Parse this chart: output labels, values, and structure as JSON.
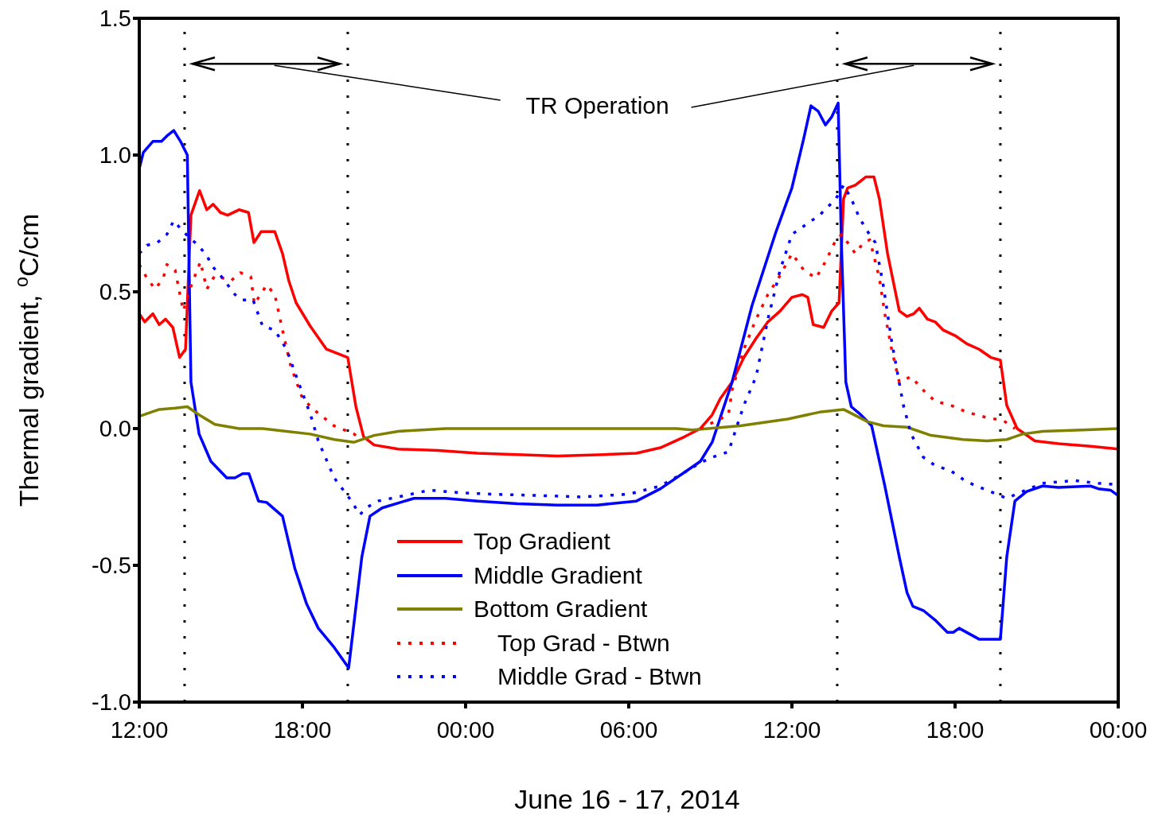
{
  "chart_data": {
    "type": "line",
    "xlabel": "June 16 - 17, 2014",
    "ylabel": "Thermal gradient, $^{o}$C/cm",
    "xlim": [
      "2014-06-16T12:00",
      "2014-06-18T00:00"
    ],
    "xticks": [
      {
        "value": "2014-06-16T12:00",
        "label": "12:00"
      },
      {
        "value": "2014-06-16T18:00",
        "label": "18:00"
      },
      {
        "value": "2014-06-17T00:00",
        "label": "00:00"
      },
      {
        "value": "2014-06-17T06:00",
        "label": "06:00"
      },
      {
        "value": "2014-06-17T12:00",
        "label": "12:00"
      },
      {
        "value": "2014-06-17T18:00",
        "label": "18:00"
      },
      {
        "value": "2014-06-18T00:00",
        "label": "00:00"
      }
    ],
    "ylim": [
      -1.0,
      1.5
    ],
    "yticks": [
      {
        "value": -1.0,
        "label": "-1.0"
      },
      {
        "value": -0.5,
        "label": "-0.5"
      },
      {
        "value": 0.0,
        "label": "0.0"
      },
      {
        "value": 0.5,
        "label": "0.5"
      },
      {
        "value": 1.0,
        "label": "1.0"
      },
      {
        "value": 1.5,
        "label": "1.5"
      }
    ],
    "legend": "bottom",
    "marker": "none",
    "annotations": [
      "TR Operation"
    ],
    "ref_lines": [
      {
        "axis": "x",
        "value": "2014-06-16T13:40",
        "color": "#000000",
        "line_style": "dotted"
      },
      {
        "axis": "x",
        "value": "2014-06-16T19:40",
        "color": "#000000",
        "line_style": "dotted"
      },
      {
        "axis": "x",
        "value": "2014-06-17T13:40",
        "color": "#000000",
        "line_style": "dotted"
      },
      {
        "axis": "x",
        "value": "2014-06-17T19:40",
        "color": "#000000",
        "line_style": "dotted"
      }
    ],
    "series": [
      {
        "name": "Top Gradient",
        "color": "#ff0000",
        "line_style": "solid",
        "x": [
          "2014-06-16T12:00",
          "2014-06-16T12:12",
          "2014-06-16T12:30",
          "2014-06-16T12:44",
          "2014-06-16T12:58",
          "2014-06-16T13:14",
          "2014-06-16T13:29",
          "2014-06-16T13:42",
          "2014-06-16T13:54",
          "2014-06-16T14:13",
          "2014-06-16T14:29",
          "2014-06-16T14:43",
          "2014-06-16T14:59",
          "2014-06-16T15:15",
          "2014-06-16T15:40",
          "2014-06-16T16:01",
          "2014-06-16T16:13",
          "2014-06-16T16:29",
          "2014-06-16T16:59",
          "2014-06-16T17:16",
          "2014-06-16T17:30",
          "2014-06-16T17:46",
          "2014-06-16T18:17",
          "2014-06-16T18:53",
          "2014-06-16T19:40",
          "2014-06-16T19:58",
          "2014-06-16T20:15",
          "2014-06-16T20:38",
          "2014-06-16T21:31",
          "2014-06-16T22:59",
          "2014-06-17T00:26",
          "2014-06-17T03:22",
          "2014-06-17T05:07",
          "2014-06-17T06:17",
          "2014-06-17T07:10",
          "2014-06-17T08:03",
          "2014-06-17T08:38",
          "2014-06-17T09:04",
          "2014-06-17T09:22",
          "2014-06-17T09:48",
          "2014-06-17T10:14",
          "2014-06-17T10:41",
          "2014-06-17T11:07",
          "2014-06-17T11:34",
          "2014-06-17T12:00",
          "2014-06-17T12:23",
          "2014-06-17T12:35",
          "2014-06-17T12:47",
          "2014-06-17T13:10",
          "2014-06-17T13:28",
          "2014-06-17T13:44",
          "2014-06-17T13:54",
          "2014-06-17T14:03",
          "2014-06-17T14:20",
          "2014-06-17T14:43",
          "2014-06-17T15:01",
          "2014-06-17T15:13",
          "2014-06-17T15:31",
          "2014-06-17T15:57",
          "2014-06-17T16:14",
          "2014-06-17T16:29",
          "2014-06-17T16:41",
          "2014-06-17T16:59",
          "2014-06-17T17:16",
          "2014-06-17T17:34",
          "2014-06-17T18:00",
          "2014-06-17T18:26",
          "2014-06-17T18:53",
          "2014-06-17T19:19",
          "2014-06-17T19:40",
          "2014-06-17T19:54",
          "2014-06-17T20:17",
          "2014-06-17T20:56",
          "2014-06-17T21:48",
          "2014-06-17T22:59",
          "2014-06-18T00:00"
        ],
        "values": [
          0.42,
          0.39,
          0.42,
          0.38,
          0.4,
          0.37,
          0.26,
          0.29,
          0.78,
          0.87,
          0.8,
          0.82,
          0.79,
          0.78,
          0.8,
          0.79,
          0.68,
          0.72,
          0.72,
          0.64,
          0.54,
          0.46,
          0.375,
          0.29,
          0.26,
          0.08,
          -0.03,
          -0.06,
          -0.075,
          -0.08,
          -0.09,
          -0.1,
          -0.095,
          -0.09,
          -0.07,
          -0.03,
          0.0,
          0.05,
          0.11,
          0.17,
          0.26,
          0.33,
          0.39,
          0.43,
          0.48,
          0.49,
          0.48,
          0.38,
          0.37,
          0.43,
          0.46,
          0.84,
          0.88,
          0.89,
          0.92,
          0.92,
          0.84,
          0.64,
          0.43,
          0.41,
          0.42,
          0.44,
          0.4,
          0.39,
          0.36,
          0.34,
          0.31,
          0.29,
          0.26,
          0.25,
          0.085,
          0.0,
          -0.045,
          -0.055,
          -0.065,
          -0.075
        ]
      },
      {
        "name": "Middle Gradient",
        "color": "#0000ff",
        "line_style": "solid",
        "x": [
          "2014-06-16T12:00",
          "2014-06-16T12:09",
          "2014-06-16T12:30",
          "2014-06-16T12:49",
          "2014-06-16T13:01",
          "2014-06-16T13:16",
          "2014-06-16T13:31",
          "2014-06-16T13:46",
          "2014-06-16T13:54",
          "2014-06-16T14:12",
          "2014-06-16T14:38",
          "2014-06-16T15:13",
          "2014-06-16T15:31",
          "2014-06-16T15:48",
          "2014-06-16T16:02",
          "2014-06-16T16:23",
          "2014-06-16T16:41",
          "2014-06-16T17:16",
          "2014-06-16T17:43",
          "2014-06-16T18:09",
          "2014-06-16T18:35",
          "2014-06-16T19:10",
          "2014-06-16T19:42",
          "2014-06-16T20:11",
          "2014-06-16T20:29",
          "2014-06-16T20:56",
          "2014-06-16T22:06",
          "2014-06-16T23:16",
          "2014-06-17T00:26",
          "2014-06-17T01:54",
          "2014-06-17T03:22",
          "2014-06-17T04:50",
          "2014-06-17T06:17",
          "2014-06-17T07:10",
          "2014-06-17T08:03",
          "2014-06-17T08:38",
          "2014-06-17T09:04",
          "2014-06-17T09:22",
          "2014-06-17T09:48",
          "2014-06-17T10:32",
          "2014-06-17T11:25",
          "2014-06-17T12:00",
          "2014-06-17T12:26",
          "2014-06-17T12:42",
          "2014-06-17T12:58",
          "2014-06-17T13:14",
          "2014-06-17T13:28",
          "2014-06-17T13:42",
          "2014-06-17T13:49",
          "2014-06-17T13:59",
          "2014-06-17T14:11",
          "2014-06-17T14:29",
          "2014-06-17T14:56",
          "2014-06-17T15:25",
          "2014-06-17T15:57",
          "2014-06-17T16:14",
          "2014-06-17T16:27",
          "2014-06-17T16:50",
          "2014-06-17T17:16",
          "2014-06-17T17:43",
          "2014-06-17T17:56",
          "2014-06-17T18:09",
          "2014-06-17T18:53",
          "2014-06-17T19:40",
          "2014-06-17T19:54",
          "2014-06-17T20:12",
          "2014-06-17T20:38",
          "2014-06-17T21:13",
          "2014-06-17T21:48",
          "2014-06-17T22:59",
          "2014-06-17T23:16",
          "2014-06-17T23:43",
          "2014-06-18T00:00"
        ],
        "values": [
          0.95,
          1.01,
          1.05,
          1.05,
          1.07,
          1.09,
          1.05,
          1.0,
          0.17,
          -0.02,
          -0.12,
          -0.18,
          -0.18,
          -0.165,
          -0.165,
          -0.265,
          -0.27,
          -0.32,
          -0.51,
          -0.64,
          -0.73,
          -0.8,
          -0.875,
          -0.47,
          -0.32,
          -0.29,
          -0.255,
          -0.255,
          -0.265,
          -0.275,
          -0.28,
          -0.28,
          -0.265,
          -0.22,
          -0.16,
          -0.12,
          -0.05,
          0.04,
          0.17,
          0.45,
          0.72,
          0.88,
          1.06,
          1.18,
          1.16,
          1.11,
          1.14,
          1.19,
          0.69,
          0.17,
          0.08,
          0.055,
          0.01,
          -0.21,
          -0.47,
          -0.6,
          -0.65,
          -0.665,
          -0.7,
          -0.745,
          -0.745,
          -0.73,
          -0.77,
          -0.77,
          -0.47,
          -0.265,
          -0.23,
          -0.21,
          -0.215,
          -0.21,
          -0.22,
          -0.225,
          -0.245
        ]
      },
      {
        "name": "Bottom Gradient",
        "color": "#808000",
        "line_style": "solid",
        "x": [
          "2014-06-16T12:00",
          "2014-06-16T12:44",
          "2014-06-16T13:19",
          "2014-06-16T13:46",
          "2014-06-16T14:12",
          "2014-06-16T14:47",
          "2014-06-16T15:40",
          "2014-06-16T16:32",
          "2014-06-16T17:25",
          "2014-06-16T18:17",
          "2014-06-16T19:10",
          "2014-06-16T19:54",
          "2014-06-16T20:38",
          "2014-06-16T21:31",
          "2014-06-16T23:16",
          "2014-06-17T03:22",
          "2014-06-17T07:46",
          "2014-06-17T08:20",
          "2014-06-17T10:06",
          "2014-06-17T11:51",
          "2014-06-17T13:01",
          "2014-06-17T13:54",
          "2014-06-17T14:47",
          "2014-06-17T15:22",
          "2014-06-17T16:14",
          "2014-06-17T17:07",
          "2014-06-17T18:17",
          "2014-06-17T19:10",
          "2014-06-17T19:54",
          "2014-06-17T20:29",
          "2014-06-17T21:13",
          "2014-06-17T22:41",
          "2014-06-18T00:00"
        ],
        "values": [
          0.045,
          0.07,
          0.075,
          0.08,
          0.05,
          0.015,
          0.0,
          0.0,
          -0.01,
          -0.02,
          -0.04,
          -0.05,
          -0.025,
          -0.01,
          0.0,
          0.0,
          0.0,
          -0.005,
          0.01,
          0.035,
          0.06,
          0.07,
          0.025,
          0.01,
          0.005,
          -0.025,
          -0.04,
          -0.045,
          -0.04,
          -0.02,
          -0.01,
          -0.005,
          0.0
        ]
      },
      {
        "name": "Top Grad - Btwn",
        "color": "#ff0000",
        "line_style": "dotted",
        "x": [
          "2014-06-16T12:00",
          "2014-06-16T12:17",
          "2014-06-16T12:35",
          "2014-06-16T12:53",
          "2014-06-16T13:01",
          "2014-06-16T13:19",
          "2014-06-16T13:37",
          "2014-06-16T13:54",
          "2014-06-16T14:15",
          "2014-06-16T14:29",
          "2014-06-16T14:47",
          "2014-06-16T15:22",
          "2014-06-16T15:43",
          "2014-06-16T16:06",
          "2014-06-16T16:14",
          "2014-06-16T16:41",
          "2014-06-16T16:59",
          "2014-06-16T17:16",
          "2014-06-16T17:34",
          "2014-06-16T18:00",
          "2014-06-16T18:35",
          "2014-06-16T19:10",
          "2014-06-16T19:54",
          "2014-06-16T20:11",
          "2014-06-17T02:00",
          "2014-06-17T08:38",
          "2014-06-17T09:40",
          "2014-06-17T09:48",
          "2014-06-17T10:14",
          "2014-06-17T10:41",
          "2014-06-17T11:07",
          "2014-06-17T11:34",
          "2014-06-17T12:00",
          "2014-06-17T12:26",
          "2014-06-17T12:53",
          "2014-06-17T13:14",
          "2014-06-17T13:37",
          "2014-06-17T13:50",
          "2014-06-17T14:20",
          "2014-06-17T14:38",
          "2014-06-17T14:52",
          "2014-06-17T15:13",
          "2014-06-17T15:25",
          "2014-06-17T15:40",
          "2014-06-17T15:57",
          "2014-06-17T16:23",
          "2014-06-17T16:50",
          "2014-06-17T17:16",
          "2014-06-17T17:51",
          "2014-06-17T18:26",
          "2014-06-17T19:10",
          "2014-06-17T19:46",
          "2014-06-17T20:12"
        ],
        "values": [
          0.6,
          0.55,
          0.51,
          0.55,
          0.6,
          0.58,
          0.43,
          0.52,
          0.61,
          0.51,
          0.56,
          0.54,
          0.57,
          0.555,
          0.455,
          0.525,
          0.49,
          0.36,
          0.23,
          0.11,
          0.055,
          0.01,
          -0.02,
          -0.045,
          null,
          0.0,
          0.05,
          0.14,
          0.29,
          0.4,
          0.49,
          0.56,
          0.64,
          0.58,
          0.55,
          0.61,
          0.69,
          0.71,
          0.64,
          0.68,
          0.69,
          0.55,
          0.42,
          0.29,
          0.17,
          0.19,
          0.14,
          0.1,
          0.085,
          0.06,
          0.04,
          0.03,
          0.0
        ]
      },
      {
        "name": "Middle Grad - Btwn",
        "color": "#0000ff",
        "line_style": "dotted",
        "x": [
          "2014-06-16T12:00",
          "2014-06-16T12:17",
          "2014-06-16T12:40",
          "2014-06-16T13:01",
          "2014-06-16T13:16",
          "2014-06-16T13:37",
          "2014-06-16T14:03",
          "2014-06-16T14:26",
          "2014-06-16T14:43",
          "2014-06-16T15:04",
          "2014-06-16T15:31",
          "2014-06-16T15:48",
          "2014-06-16T16:11",
          "2014-06-16T16:32",
          "2014-06-16T16:59",
          "2014-06-16T17:25",
          "2014-06-16T17:51",
          "2014-06-16T18:17",
          "2014-06-16T18:35",
          "2014-06-16T19:10",
          "2014-06-16T19:46",
          "2014-06-16T20:07",
          "2014-06-16T20:20",
          "2014-06-16T20:47",
          "2014-06-16T21:31",
          "2014-06-16T22:41",
          "2014-06-16T23:51",
          "2014-06-17T01:01",
          "2014-06-17T02:47",
          "2014-06-17T04:14",
          "2014-06-17T06:00",
          "2014-06-17T07:10",
          "2014-06-17T08:03",
          "2014-06-17T08:38",
          "2014-06-17T09:04",
          "2014-06-17T09:40",
          "2014-06-17T10:14",
          "2014-06-17T10:41",
          "2014-06-17T11:07",
          "2014-06-17T11:34",
          "2014-06-17T12:00",
          "2014-06-17T12:26",
          "2014-06-17T13:01",
          "2014-06-17T13:37",
          "2014-06-17T13:54",
          "2014-06-17T14:11",
          "2014-06-17T14:29",
          "2014-06-17T14:47",
          "2014-06-17T15:04",
          "2014-06-17T15:22",
          "2014-06-17T15:40",
          "2014-06-17T16:06",
          "2014-06-17T16:23",
          "2014-06-17T16:50",
          "2014-06-17T17:16",
          "2014-06-17T17:51",
          "2014-06-17T18:26",
          "2014-06-17T19:10",
          "2014-06-17T19:54",
          "2014-06-17T20:29",
          "2014-06-17T21:13",
          "2014-06-17T22:23",
          "2014-06-17T23:16",
          "2014-06-18T00:00"
        ],
        "values": [
          0.64,
          0.67,
          0.68,
          0.71,
          0.76,
          0.72,
          0.68,
          0.64,
          0.59,
          0.55,
          0.49,
          0.47,
          0.47,
          0.375,
          0.36,
          0.29,
          0.17,
          0.055,
          -0.045,
          -0.18,
          -0.26,
          -0.315,
          -0.29,
          -0.265,
          -0.25,
          -0.225,
          -0.235,
          -0.24,
          -0.245,
          -0.25,
          -0.24,
          -0.21,
          -0.16,
          -0.125,
          -0.105,
          -0.085,
          0.085,
          0.19,
          0.4,
          0.58,
          0.71,
          0.74,
          0.78,
          0.84,
          0.89,
          0.84,
          0.77,
          0.72,
          0.68,
          0.52,
          0.32,
          0.085,
          -0.02,
          -0.105,
          -0.135,
          -0.155,
          -0.195,
          -0.225,
          -0.255,
          -0.23,
          -0.2,
          -0.19,
          -0.2,
          -0.205
        ]
      }
    ]
  }
}
